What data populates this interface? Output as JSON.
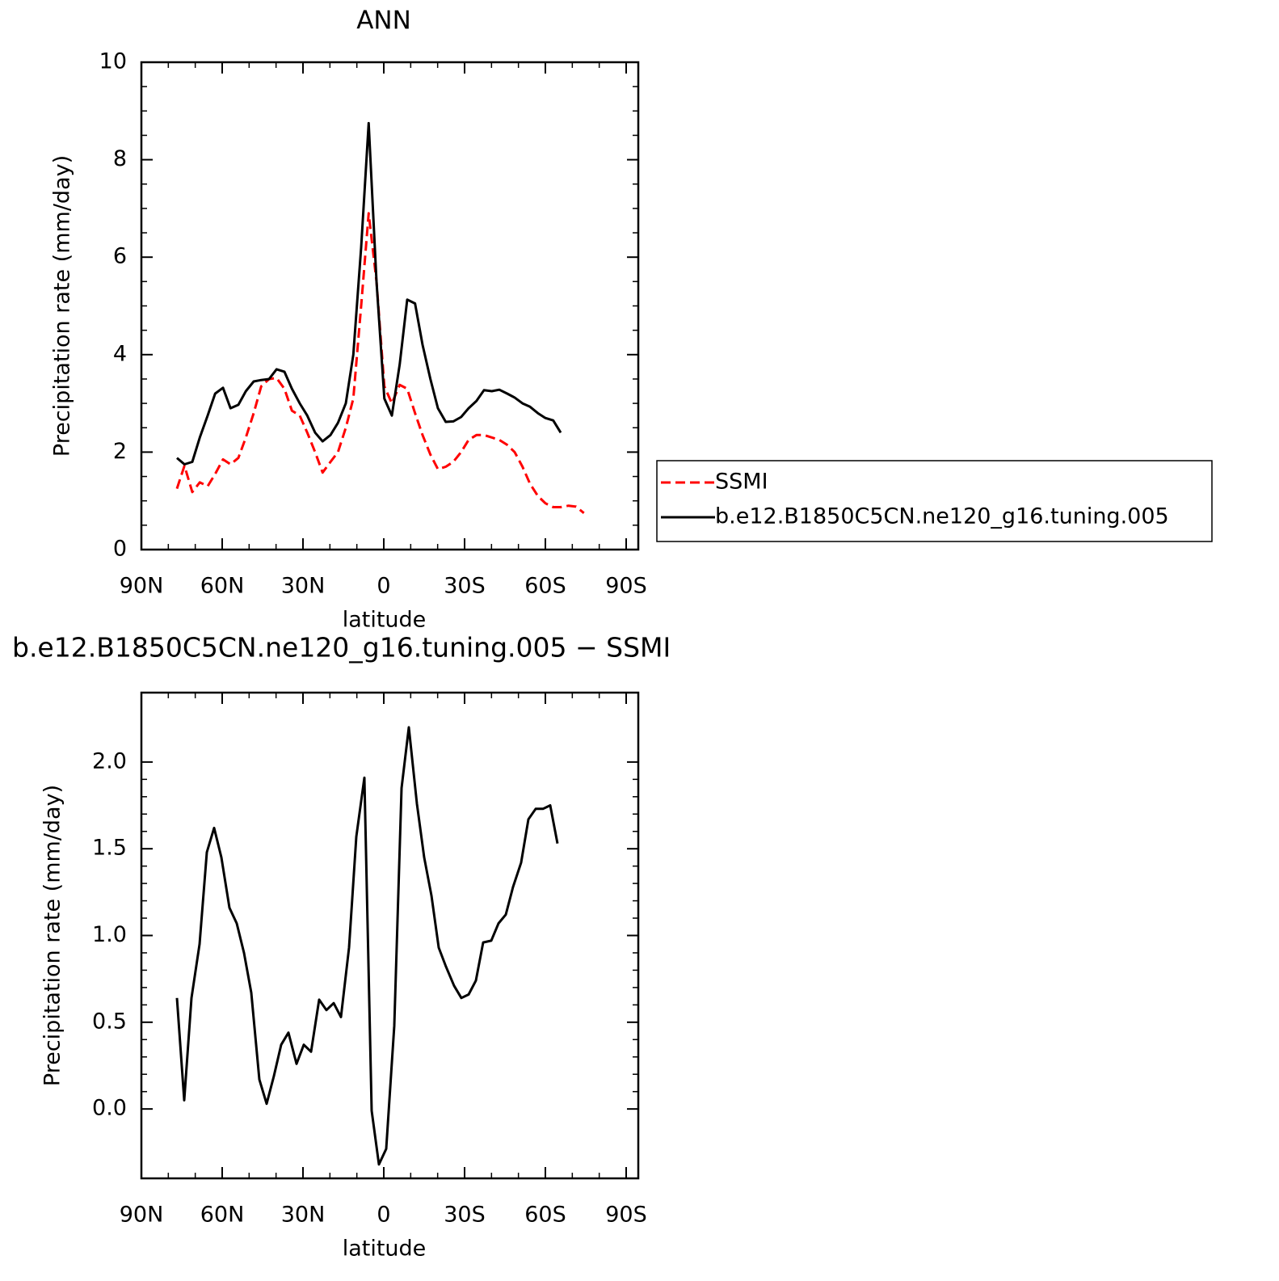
{
  "chart_data": [
    {
      "type": "line",
      "title": "ANN",
      "xlabel": "latitude",
      "ylabel": "Precipitation rate (mm/day)",
      "x": [
        76.8,
        74.0,
        71.1,
        68.3,
        65.4,
        62.6,
        59.7,
        56.9,
        54.0,
        51.2,
        48.3,
        45.5,
        42.6,
        39.8,
        36.9,
        34.1,
        31.2,
        28.4,
        25.5,
        22.7,
        19.8,
        17.0,
        14.1,
        11.3,
        8.4,
        5.6,
        2.7,
        -0.2,
        -3.0,
        -5.9,
        -8.7,
        -11.6,
        -14.4,
        -17.3,
        -20.1,
        -23.0,
        -25.8,
        -28.7,
        -31.5,
        -34.4,
        -37.2,
        -40.1,
        -42.9,
        -45.8,
        -48.6,
        -51.5,
        -54.3,
        -57.2,
        -60.0,
        -62.9,
        -65.7,
        -68.6,
        -71.4,
        -74.3
      ],
      "series": [
        {
          "name": "SSMI",
          "color": "#ff0000",
          "line_style": "dashed",
          "values": [
            1.25,
            1.72,
            1.18,
            1.38,
            1.3,
            1.55,
            1.85,
            1.75,
            1.88,
            2.3,
            2.8,
            3.35,
            3.5,
            3.52,
            3.3,
            2.85,
            2.75,
            2.4,
            2.0,
            1.58,
            1.8,
            2.0,
            2.5,
            3.1,
            5.0,
            6.9,
            5.5,
            3.35,
            3.0,
            3.38,
            3.3,
            2.8,
            2.35,
            1.95,
            1.65,
            1.7,
            1.8,
            2.0,
            2.25,
            2.35,
            2.35,
            2.3,
            2.25,
            2.15,
            2.0,
            1.7,
            1.35,
            1.1,
            0.95,
            0.87,
            0.87,
            0.9,
            0.88,
            0.75
          ]
        },
        {
          "name": "b.e12.B1850C5CN.ne120_g16.tuning.005",
          "color": "#000000",
          "line_style": "solid",
          "values": [
            1.88,
            1.75,
            1.8,
            2.3,
            2.75,
            3.2,
            3.32,
            2.9,
            2.97,
            3.25,
            3.45,
            3.48,
            3.5,
            3.7,
            3.65,
            3.3,
            3.0,
            2.75,
            2.4,
            2.22,
            2.35,
            2.6,
            3.0,
            4.0,
            6.2,
            8.75,
            5.5,
            3.1,
            2.75,
            3.8,
            5.13,
            5.05,
            4.2,
            3.5,
            2.9,
            2.62,
            2.63,
            2.72,
            2.9,
            3.05,
            3.27,
            3.25,
            3.28,
            3.2,
            3.12,
            3.0,
            2.93,
            2.8,
            2.7,
            2.65,
            2.4,
            null,
            null,
            null
          ]
        }
      ],
      "xlim": [
        90,
        -94.5
      ],
      "xticks": [
        {
          "value": 90,
          "label": "90N"
        },
        {
          "value": 60,
          "label": "60N"
        },
        {
          "value": 30,
          "label": "30N"
        },
        0,
        {
          "value": -30,
          "label": "30S"
        },
        {
          "value": -60,
          "label": "60S"
        },
        {
          "value": -90,
          "label": "90S"
        }
      ],
      "ylim": [
        0,
        10
      ],
      "yticks": [
        0,
        2,
        4,
        6,
        8,
        10
      ],
      "legend": "right"
    },
    {
      "type": "line",
      "title": "b.e12.B1850C5CN.ne120_g16.tuning.005 − SSMI",
      "xlabel": "latitude",
      "ylabel": "Precipitation rate (mm/day)",
      "x": [
        76.8,
        74.1,
        71.4,
        68.4,
        65.7,
        63,
        60.3,
        57.3,
        54.6,
        51.9,
        49.2,
        46.2,
        43.5,
        40.8,
        38.1,
        35.4,
        32.4,
        29.7,
        27,
        24,
        21.3,
        18.6,
        15.9,
        12.9,
        10.2,
        7.2,
        4.5,
        1.8,
        -0.9,
        -3.9,
        -6.6,
        -9.3,
        -12.3,
        -15,
        -17.7,
        -20.4,
        -23.1,
        -26.1,
        -28.8,
        -31.5,
        -34.2,
        -36.9,
        -39.9,
        -42.6,
        -45.3,
        -48,
        -51,
        -53.7,
        -56.4,
        -59.1,
        -61.8,
        -64.5
      ],
      "series": [
        {
          "color": "#000000",
          "line_style": "solid",
          "values": [
            0.64,
            0.05,
            0.64,
            0.95,
            1.48,
            1.62,
            1.45,
            1.16,
            1.07,
            0.9,
            0.67,
            0.17,
            0.03,
            0.19,
            0.37,
            0.44,
            0.26,
            0.37,
            0.33,
            0.63,
            0.57,
            0.61,
            0.53,
            0.93,
            1.57,
            1.91,
            -0.01,
            -0.32,
            -0.23,
            0.48,
            1.85,
            2.2,
            1.76,
            1.45,
            1.23,
            0.93,
            0.82,
            0.71,
            0.64,
            0.66,
            0.74,
            0.96,
            0.97,
            1.07,
            1.12,
            1.28,
            1.42,
            1.67,
            1.73,
            1.73,
            1.75,
            1.53
          ]
        }
      ],
      "xlim": [
        90,
        -94.5
      ],
      "xticks": [
        {
          "value": 90,
          "label": "90N"
        },
        {
          "value": 60,
          "label": "60N"
        },
        {
          "value": 30,
          "label": "30N"
        },
        0,
        {
          "value": -30,
          "label": "30S"
        },
        {
          "value": -60,
          "label": "60S"
        },
        {
          "value": -90,
          "label": "90S"
        }
      ],
      "ylim": [
        -0.4,
        2.4
      ],
      "yticks": [
        {
          "value": 0,
          "label": "0.0"
        },
        0.5,
        {
          "value": 1,
          "label": "1.0"
        },
        1.5,
        {
          "value": 2,
          "label": "2.0"
        }
      ]
    }
  ]
}
